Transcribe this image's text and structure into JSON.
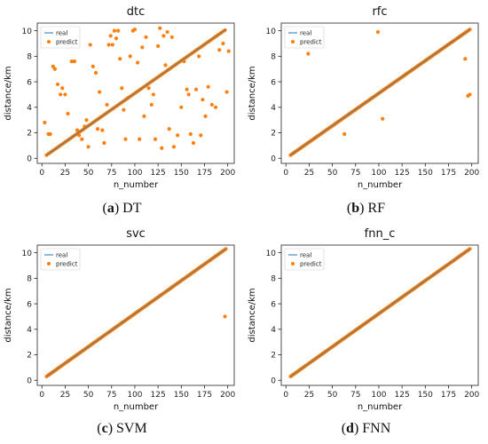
{
  "colors": {
    "real": "#1f77b4",
    "predict": "#ff7f0e"
  },
  "panels": [
    {
      "caption_letter": "a",
      "caption_text": "DT"
    },
    {
      "caption_letter": "b",
      "caption_text": "RF"
    },
    {
      "caption_letter": "c",
      "caption_text": "SVM"
    },
    {
      "caption_letter": "d",
      "caption_text": "FNN"
    }
  ],
  "chart_data": [
    {
      "type": "scatter",
      "title": "dtc",
      "xlabel": "n_number",
      "ylabel": "distance/km",
      "xlim": [
        -5,
        207
      ],
      "ylim": [
        -0.4,
        10.6
      ],
      "xticks": [
        0,
        25,
        50,
        75,
        100,
        125,
        150,
        175,
        200
      ],
      "yticks": [
        0,
        2,
        4,
        6,
        8,
        10
      ],
      "legend": "top-left",
      "series": [
        {
          "name": "real",
          "kind": "line",
          "x": [
            5,
            198
          ],
          "y": [
            0.25,
            10.1
          ]
        },
        {
          "name": "predict",
          "kind": "points",
          "on_line_x_range": [
            5,
            198
          ],
          "on_line_step": 2,
          "outliers": [
            [
              3,
              2.8
            ],
            [
              7,
              1.9
            ],
            [
              9,
              1.9
            ],
            [
              12,
              7.2
            ],
            [
              14,
              7.0
            ],
            [
              17,
              5.8
            ],
            [
              20,
              5.0
            ],
            [
              22,
              5.5
            ],
            [
              25,
              5.0
            ],
            [
              28,
              3.5
            ],
            [
              32,
              7.6
            ],
            [
              35,
              7.6
            ],
            [
              38,
              2.2
            ],
            [
              40,
              1.8
            ],
            [
              43,
              1.5
            ],
            [
              46,
              2.5
            ],
            [
              48,
              3.0
            ],
            [
              50,
              0.9
            ],
            [
              52,
              8.9
            ],
            [
              55,
              7.2
            ],
            [
              58,
              6.7
            ],
            [
              60,
              2.3
            ],
            [
              62,
              5.2
            ],
            [
              65,
              2.2
            ],
            [
              67,
              1.2
            ],
            [
              70,
              4.2
            ],
            [
              72,
              8.9
            ],
            [
              74,
              9.6
            ],
            [
              76,
              8.9
            ],
            [
              78,
              10.0
            ],
            [
              80,
              9.4
            ],
            [
              82,
              10.0
            ],
            [
              84,
              7.8
            ],
            [
              86,
              5.5
            ],
            [
              88,
              3.8
            ],
            [
              90,
              1.5
            ],
            [
              92,
              4.7
            ],
            [
              95,
              8.0
            ],
            [
              98,
              10.0
            ],
            [
              100,
              10.1
            ],
            [
              103,
              7.5
            ],
            [
              105,
              1.5
            ],
            [
              108,
              8.7
            ],
            [
              110,
              3.3
            ],
            [
              112,
              9.5
            ],
            [
              115,
              5.5
            ],
            [
              118,
              4.2
            ],
            [
              120,
              5.0
            ],
            [
              122,
              1.5
            ],
            [
              125,
              8.8
            ],
            [
              127,
              10.2
            ],
            [
              129,
              0.8
            ],
            [
              131,
              9.6
            ],
            [
              133,
              7.3
            ],
            [
              135,
              9.9
            ],
            [
              137,
              2.3
            ],
            [
              140,
              9.5
            ],
            [
              142,
              0.9
            ],
            [
              146,
              1.8
            ],
            [
              150,
              4.0
            ],
            [
              153,
              7.6
            ],
            [
              156,
              5.4
            ],
            [
              158,
              5.0
            ],
            [
              160,
              1.9
            ],
            [
              163,
              1.2
            ],
            [
              166,
              5.4
            ],
            [
              169,
              8.0
            ],
            [
              171,
              1.8
            ],
            [
              173,
              4.6
            ],
            [
              176,
              3.3
            ],
            [
              179,
              5.6
            ],
            [
              183,
              4.2
            ],
            [
              187,
              4.0
            ],
            [
              191,
              8.5
            ],
            [
              195,
              9.0
            ],
            [
              199,
              5.2
            ],
            [
              201,
              8.4
            ]
          ]
        }
      ]
    },
    {
      "type": "scatter",
      "title": "rfc",
      "xlabel": "n_number",
      "ylabel": "distance/km",
      "xlim": [
        -5,
        207
      ],
      "ylim": [
        -0.4,
        10.6
      ],
      "xticks": [
        0,
        25,
        50,
        75,
        100,
        125,
        150,
        175,
        200
      ],
      "yticks": [
        0,
        2,
        4,
        6,
        8,
        10
      ],
      "legend": "top-left",
      "series": [
        {
          "name": "real",
          "kind": "line",
          "x": [
            5,
            198
          ],
          "y": [
            0.25,
            10.1
          ]
        },
        {
          "name": "predict",
          "kind": "points",
          "on_line_x_range": [
            5,
            198
          ],
          "on_line_step": 1,
          "outliers": [
            [
              24,
              8.2
            ],
            [
              63,
              1.9
            ],
            [
              99,
              9.9
            ],
            [
              104,
              3.1
            ],
            [
              193,
              7.8
            ],
            [
              196,
              4.9
            ],
            [
              198,
              5.0
            ]
          ]
        }
      ]
    },
    {
      "type": "scatter",
      "title": "svc",
      "xlabel": "n_number",
      "ylabel": "distance/km",
      "xlim": [
        -5,
        207
      ],
      "ylim": [
        -0.4,
        10.6
      ],
      "xticks": [
        0,
        25,
        50,
        75,
        100,
        125,
        150,
        175,
        200
      ],
      "yticks": [
        0,
        2,
        4,
        6,
        8,
        10
      ],
      "legend": "top-left",
      "series": [
        {
          "name": "real",
          "kind": "line",
          "x": [
            5,
            198
          ],
          "y": [
            0.3,
            10.3
          ]
        },
        {
          "name": "predict",
          "kind": "points",
          "on_line_x_range": [
            5,
            198
          ],
          "on_line_step": 1,
          "outliers": [
            [
              197,
              5.0
            ]
          ]
        }
      ]
    },
    {
      "type": "scatter",
      "title": "fnn_c",
      "xlabel": "n_number",
      "ylabel": "distance/km",
      "xlim": [
        -5,
        207
      ],
      "ylim": [
        -0.4,
        10.6
      ],
      "xticks": [
        0,
        25,
        50,
        75,
        100,
        125,
        150,
        175,
        200
      ],
      "yticks": [
        0,
        2,
        4,
        6,
        8,
        10
      ],
      "legend": "top-left",
      "series": [
        {
          "name": "real",
          "kind": "line",
          "x": [
            5,
            198
          ],
          "y": [
            0.3,
            10.3
          ]
        },
        {
          "name": "predict",
          "kind": "points",
          "on_line_x_range": [
            5,
            198
          ],
          "on_line_step": 1,
          "outliers": []
        }
      ]
    }
  ]
}
